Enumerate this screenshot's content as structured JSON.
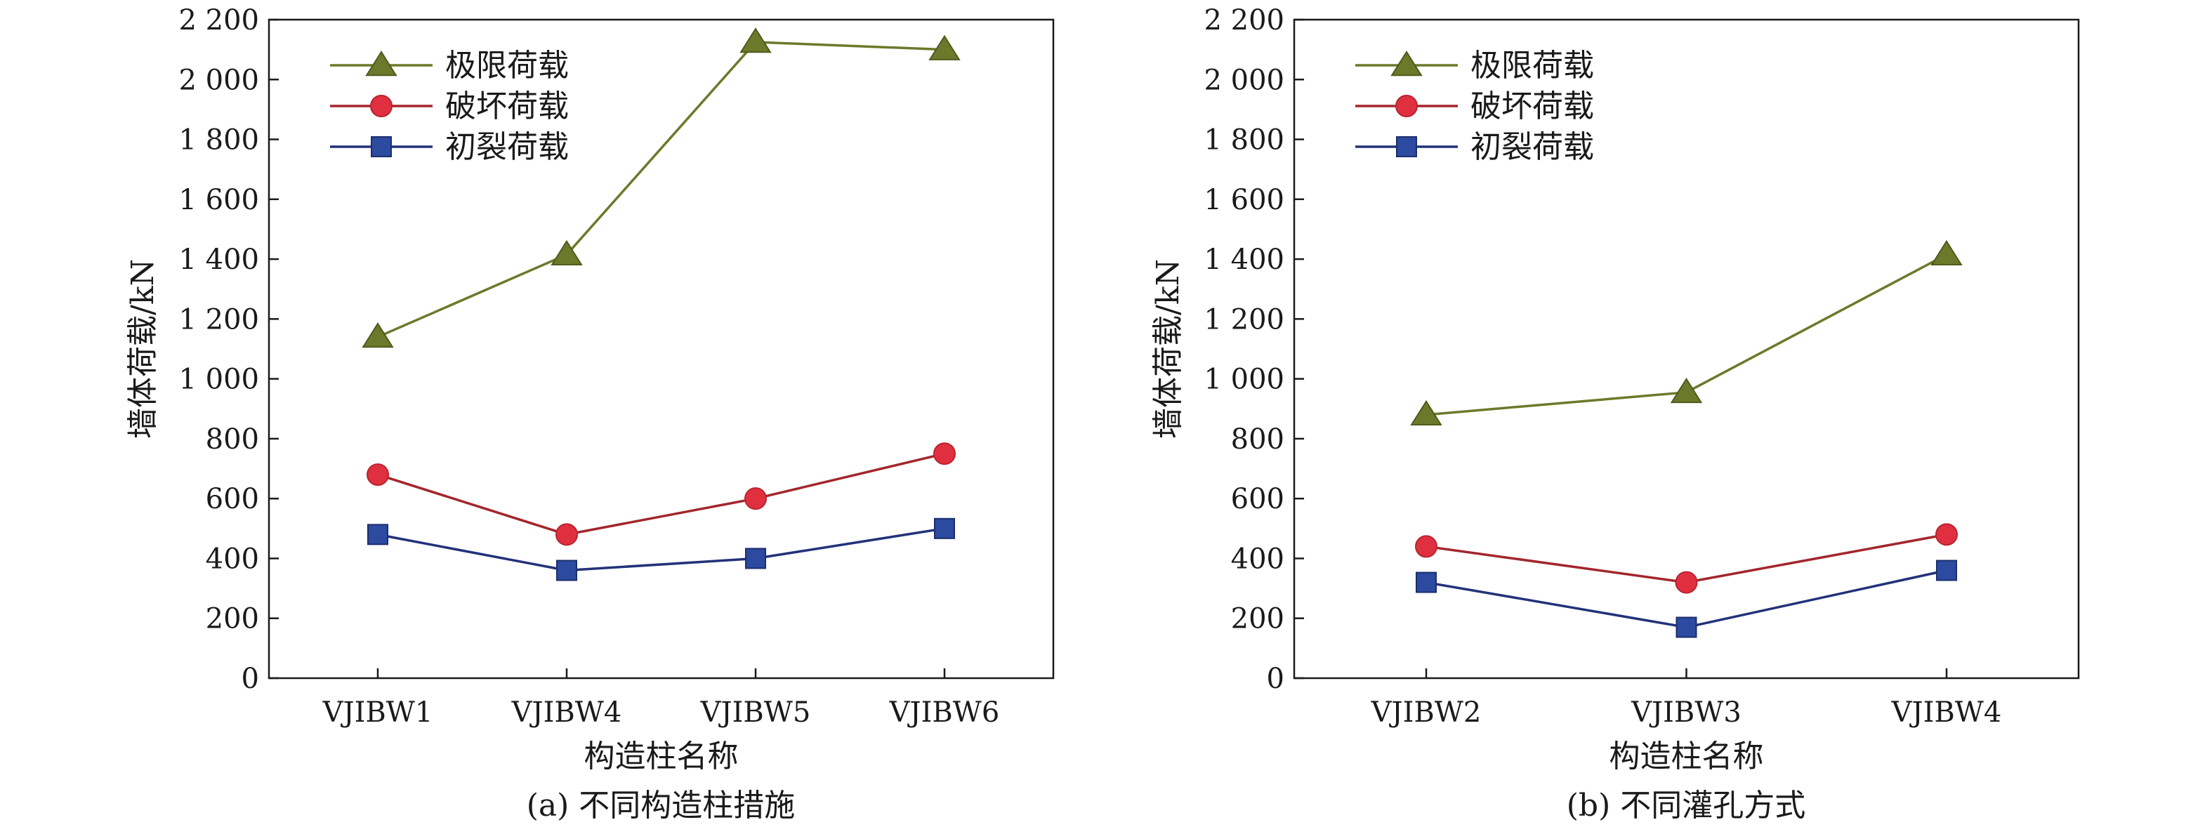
{
  "chart_data": [
    {
      "type": "line",
      "caption": "(a) 不同构造柱措施",
      "xlabel": "构造柱名称",
      "ylabel": "墙体荷载/kN",
      "ylim": [
        0,
        2200
      ],
      "yticks": [
        0,
        200,
        400,
        600,
        800,
        1000,
        1200,
        1400,
        1600,
        1800,
        2000,
        2200
      ],
      "ytick_labels": [
        "0",
        "200",
        "400",
        "600",
        "800",
        "1 000",
        "1 200",
        "1 400",
        "1 600",
        "1 800",
        "2 000",
        "2 200"
      ],
      "categories": [
        "VJIBW1",
        "VJIBW4",
        "VJIBW5",
        "VJIBW6"
      ],
      "grid": false,
      "legend_position": "top-left",
      "series": [
        {
          "name": "极限荷载",
          "values": [
            1140,
            1415,
            2125,
            2100
          ],
          "color": "#6b7a2a",
          "marker": "triangle"
        },
        {
          "name": "破坏荷载",
          "values": [
            680,
            480,
            600,
            750
          ],
          "color": "#e03040",
          "line_color": "#a3262c",
          "marker": "circle"
        },
        {
          "name": "初裂荷载",
          "values": [
            480,
            360,
            400,
            500
          ],
          "color": "#2c4aa0",
          "line_color": "#22327a",
          "marker": "square"
        }
      ]
    },
    {
      "type": "line",
      "caption": "(b) 不同灌孔方式",
      "xlabel": "构造柱名称",
      "ylabel": "墙体荷载/kN",
      "ylim": [
        0,
        2200
      ],
      "yticks": [
        0,
        200,
        400,
        600,
        800,
        1000,
        1200,
        1400,
        1600,
        1800,
        2000,
        2200
      ],
      "ytick_labels": [
        "0",
        "200",
        "400",
        "600",
        "800",
        "1 000",
        "1 200",
        "1 400",
        "1 600",
        "1 800",
        "2 000",
        "2 200"
      ],
      "categories": [
        "VJIBW2",
        "VJIBW3",
        "VJIBW4"
      ],
      "grid": false,
      "legend_position": "top-left",
      "series": [
        {
          "name": "极限荷载",
          "values": [
            880,
            955,
            1415
          ],
          "color": "#6b7a2a",
          "marker": "triangle"
        },
        {
          "name": "破坏荷载",
          "values": [
            440,
            320,
            480
          ],
          "color": "#e03040",
          "line_color": "#a3262c",
          "marker": "circle"
        },
        {
          "name": "初裂荷载",
          "values": [
            320,
            170,
            360
          ],
          "color": "#2c4aa0",
          "line_color": "#22327a",
          "marker": "square"
        }
      ]
    }
  ]
}
